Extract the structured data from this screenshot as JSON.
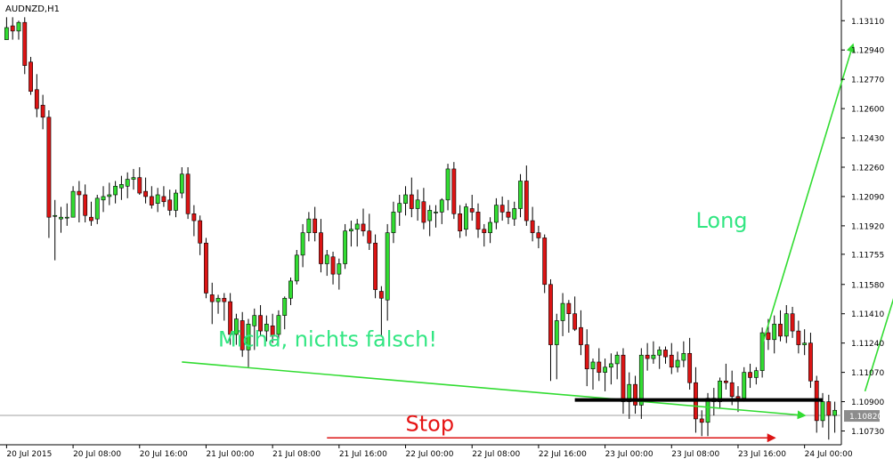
{
  "window": {
    "title": "AUDNZD,H1"
  },
  "price_marker": {
    "value": "1.10820"
  },
  "chart_data": {
    "type": "candlestick",
    "symbol": "AUDNZD",
    "timeframe": "H1",
    "ylim": [
      1.1065,
      1.1323
    ],
    "y_ticks": [
      "1.13110",
      "1.12940",
      "1.12770",
      "1.12600",
      "1.12430",
      "1.12260",
      "1.12090",
      "1.11920",
      "1.11755",
      "1.11580",
      "1.11410",
      "1.11240",
      "1.11070",
      "1.10900",
      "1.10730"
    ],
    "x_ticks": [
      {
        "i": 0,
        "label": "20 Jul 2015"
      },
      {
        "i": 11,
        "label": "20 Jul 08:00"
      },
      {
        "i": 22,
        "label": "20 Jul 16:00"
      },
      {
        "i": 33,
        "label": "21 Jul 00:00"
      },
      {
        "i": 44,
        "label": "21 Jul 08:00"
      },
      {
        "i": 55,
        "label": "21 Jul 16:00"
      },
      {
        "i": 66,
        "label": "22 Jul 00:00"
      },
      {
        "i": 77,
        "label": "22 Jul 08:00"
      },
      {
        "i": 88,
        "label": "22 Jul 16:00"
      },
      {
        "i": 99,
        "label": "23 Jul 00:00"
      },
      {
        "i": 110,
        "label": "23 Jul 08:00"
      },
      {
        "i": 121,
        "label": "23 Jul 16:00"
      },
      {
        "i": 132,
        "label": "24 Jul 00:00"
      }
    ],
    "colors": {
      "bull": "#32dc32",
      "bear": "#dc1414",
      "wick": "#000000",
      "grid": "#c8c8c8"
    },
    "candles": [
      [
        1.13,
        1.1313,
        1.13,
        1.1307
      ],
      [
        1.1308,
        1.1313,
        1.13,
        1.1305
      ],
      [
        1.1305,
        1.1311,
        1.13,
        1.131
      ],
      [
        1.131,
        1.1313,
        1.128,
        1.1285
      ],
      [
        1.1287,
        1.129,
        1.1268,
        1.127
      ],
      [
        1.1271,
        1.128,
        1.1255,
        1.126
      ],
      [
        1.1262,
        1.1268,
        1.1248,
        1.1255
      ],
      [
        1.1255,
        1.1259,
        1.1185,
        1.1197
      ],
      [
        1.1198,
        1.1207,
        1.1172,
        1.1198
      ],
      [
        1.1196,
        1.1203,
        1.1188,
        1.1197
      ],
      [
        1.1197,
        1.1205,
        1.1192,
        1.1197
      ],
      [
        1.1197,
        1.1215,
        1.1197,
        1.1212
      ],
      [
        1.1212,
        1.1218,
        1.1194,
        1.121
      ],
      [
        1.121,
        1.1216,
        1.1194,
        1.1198
      ],
      [
        1.1197,
        1.1206,
        1.1192,
        1.1195
      ],
      [
        1.1196,
        1.121,
        1.1193,
        1.1208
      ],
      [
        1.1207,
        1.1215,
        1.12,
        1.1209
      ],
      [
        1.1209,
        1.1217,
        1.1204,
        1.121
      ],
      [
        1.121,
        1.1218,
        1.1205,
        1.1215
      ],
      [
        1.1214,
        1.1221,
        1.1207,
        1.1216
      ],
      [
        1.1215,
        1.1223,
        1.1208,
        1.1219
      ],
      [
        1.1219,
        1.1225,
        1.1213,
        1.122
      ],
      [
        1.122,
        1.1226,
        1.121,
        1.1211
      ],
      [
        1.1212,
        1.122,
        1.1205,
        1.1209
      ],
      [
        1.1209,
        1.1215,
        1.1202,
        1.1204
      ],
      [
        1.1205,
        1.1214,
        1.12,
        1.121
      ],
      [
        1.1209,
        1.1215,
        1.1203,
        1.1206
      ],
      [
        1.1207,
        1.1213,
        1.1198,
        1.1201
      ],
      [
        1.1201,
        1.1213,
        1.1197,
        1.1211
      ],
      [
        1.1211,
        1.1226,
        1.1208,
        1.1222
      ],
      [
        1.1222,
        1.1226,
        1.1196,
        1.1199
      ],
      [
        1.1199,
        1.1204,
        1.1186,
        1.1195
      ],
      [
        1.1195,
        1.1198,
        1.1175,
        1.1182
      ],
      [
        1.1182,
        1.1185,
        1.115,
        1.1153
      ],
      [
        1.1152,
        1.1159,
        1.1135,
        1.1148
      ],
      [
        1.1148,
        1.1152,
        1.1141,
        1.115
      ],
      [
        1.115,
        1.1153,
        1.1137,
        1.1148
      ],
      [
        1.1148,
        1.1153,
        1.1123,
        1.1129
      ],
      [
        1.1129,
        1.1141,
        1.1123,
        1.1138
      ],
      [
        1.1137,
        1.1142,
        1.1116,
        1.112
      ],
      [
        1.112,
        1.1138,
        1.111,
        1.1135
      ],
      [
        1.1134,
        1.1144,
        1.112,
        1.114
      ],
      [
        1.114,
        1.1146,
        1.1128,
        1.1131
      ],
      [
        1.1131,
        1.114,
        1.1125,
        1.1135
      ],
      [
        1.1134,
        1.1141,
        1.1124,
        1.1128
      ],
      [
        1.1129,
        1.1143,
        1.1126,
        1.114
      ],
      [
        1.114,
        1.1151,
        1.1132,
        1.115
      ],
      [
        1.115,
        1.1162,
        1.1146,
        1.116
      ],
      [
        1.116,
        1.1178,
        1.1158,
        1.1175
      ],
      [
        1.1175,
        1.1193,
        1.1168,
        1.1188
      ],
      [
        1.1188,
        1.12,
        1.1183,
        1.1196
      ],
      [
        1.1196,
        1.1203,
        1.1183,
        1.1188
      ],
      [
        1.1188,
        1.1196,
        1.1165,
        1.117
      ],
      [
        1.117,
        1.1178,
        1.1163,
        1.1175
      ],
      [
        1.1174,
        1.1177,
        1.1158,
        1.1164
      ],
      [
        1.1164,
        1.1173,
        1.1155,
        1.117
      ],
      [
        1.117,
        1.1193,
        1.1167,
        1.1189
      ],
      [
        1.1189,
        1.1195,
        1.118,
        1.119
      ],
      [
        1.119,
        1.1196,
        1.118,
        1.1193
      ],
      [
        1.1193,
        1.1202,
        1.1186,
        1.1189
      ],
      [
        1.1189,
        1.1199,
        1.1178,
        1.1182
      ],
      [
        1.1182,
        1.1187,
        1.115,
        1.1155
      ],
      [
        1.1154,
        1.1157,
        1.1128,
        1.115
      ],
      [
        1.1149,
        1.1193,
        1.1137,
        1.1188
      ],
      [
        1.1188,
        1.1206,
        1.1182,
        1.12
      ],
      [
        1.12,
        1.121,
        1.1192,
        1.1205
      ],
      [
        1.1205,
        1.1215,
        1.1198,
        1.121
      ],
      [
        1.121,
        1.122,
        1.1197,
        1.1202
      ],
      [
        1.1202,
        1.1213,
        1.1195,
        1.1207
      ],
      [
        1.1206,
        1.1214,
        1.119,
        1.1194
      ],
      [
        1.1195,
        1.1204,
        1.1186,
        1.1201
      ],
      [
        1.12,
        1.1204,
        1.1191,
        1.12
      ],
      [
        1.12,
        1.1208,
        1.1193,
        1.1207
      ],
      [
        1.1207,
        1.1228,
        1.1201,
        1.1225
      ],
      [
        1.1225,
        1.1229,
        1.1196,
        1.1199
      ],
      [
        1.1199,
        1.1204,
        1.1185,
        1.1189
      ],
      [
        1.119,
        1.1205,
        1.1186,
        1.1203
      ],
      [
        1.1202,
        1.121,
        1.1195,
        1.12
      ],
      [
        1.12,
        1.1205,
        1.1185,
        1.119
      ],
      [
        1.119,
        1.1193,
        1.118,
        1.1188
      ],
      [
        1.1188,
        1.1197,
        1.1182,
        1.1194
      ],
      [
        1.1194,
        1.1208,
        1.119,
        1.1204
      ],
      [
        1.1204,
        1.1209,
        1.1195,
        1.12
      ],
      [
        1.12,
        1.1207,
        1.1193,
        1.1197
      ],
      [
        1.1196,
        1.1206,
        1.1192,
        1.1202
      ],
      [
        1.1202,
        1.1222,
        1.1197,
        1.1218
      ],
      [
        1.1218,
        1.1227,
        1.1192,
        1.1195
      ],
      [
        1.1195,
        1.1203,
        1.1183,
        1.1188
      ],
      [
        1.1188,
        1.1192,
        1.1179,
        1.1185
      ],
      [
        1.1185,
        1.1187,
        1.1153,
        1.1158
      ],
      [
        1.1158,
        1.1161,
        1.1102,
        1.1123
      ],
      [
        1.1123,
        1.1141,
        1.1103,
        1.1137
      ],
      [
        1.1137,
        1.1153,
        1.1128,
        1.1147
      ],
      [
        1.1147,
        1.1149,
        1.113,
        1.1141
      ],
      [
        1.1141,
        1.1151,
        1.1131,
        1.1132
      ],
      [
        1.1133,
        1.1143,
        1.1117,
        1.1123
      ],
      [
        1.1123,
        1.1132,
        1.1099,
        1.1109
      ],
      [
        1.1109,
        1.1115,
        1.1097,
        1.1113
      ],
      [
        1.1113,
        1.1121,
        1.1102,
        1.1107
      ],
      [
        1.1107,
        1.1115,
        1.1096,
        1.111
      ],
      [
        1.111,
        1.1118,
        1.11,
        1.1112
      ],
      [
        1.1112,
        1.1119,
        1.1103,
        1.1117
      ],
      [
        1.1117,
        1.1121,
        1.1083,
        1.109
      ],
      [
        1.109,
        1.1107,
        1.108,
        1.11
      ],
      [
        1.11,
        1.1105,
        1.1083,
        1.1088
      ],
      [
        1.1088,
        1.1121,
        1.108,
        1.1117
      ],
      [
        1.1117,
        1.1124,
        1.1108,
        1.1115
      ],
      [
        1.1115,
        1.1125,
        1.1112,
        1.1117
      ],
      [
        1.1117,
        1.1122,
        1.1109,
        1.112
      ],
      [
        1.112,
        1.1122,
        1.1112,
        1.1116
      ],
      [
        1.1117,
        1.1124,
        1.1106,
        1.111
      ],
      [
        1.111,
        1.1119,
        1.1107,
        1.1114
      ],
      [
        1.1114,
        1.1125,
        1.111,
        1.1118
      ],
      [
        1.1118,
        1.1127,
        1.1097,
        1.1101
      ],
      [
        1.1101,
        1.111,
        1.1072,
        1.108
      ],
      [
        1.108,
        1.1085,
        1.107,
        1.1078
      ],
      [
        1.1078,
        1.1095,
        1.107,
        1.1092
      ],
      [
        1.1092,
        1.1098,
        1.1082,
        1.109
      ],
      [
        1.109,
        1.1104,
        1.1086,
        1.1102
      ],
      [
        1.1102,
        1.1112,
        1.1097,
        1.1101
      ],
      [
        1.1101,
        1.1108,
        1.1088,
        1.1093
      ],
      [
        1.1093,
        1.1099,
        1.1084,
        1.1092
      ],
      [
        1.1092,
        1.111,
        1.109,
        1.1107
      ],
      [
        1.1107,
        1.1112,
        1.1098,
        1.1104
      ],
      [
        1.1104,
        1.111,
        1.11,
        1.1108
      ],
      [
        1.1108,
        1.1133,
        1.1104,
        1.113
      ],
      [
        1.113,
        1.1138,
        1.112,
        1.1126
      ],
      [
        1.1126,
        1.114,
        1.1118,
        1.1135
      ],
      [
        1.1135,
        1.1143,
        1.1125,
        1.1128
      ],
      [
        1.1128,
        1.1146,
        1.1124,
        1.1141
      ],
      [
        1.1141,
        1.1145,
        1.1127,
        1.1131
      ],
      [
        1.1131,
        1.1137,
        1.1118,
        1.1123
      ],
      [
        1.1123,
        1.1132,
        1.1117,
        1.1124
      ],
      [
        1.1124,
        1.113,
        1.1098,
        1.1102
      ],
      [
        1.1102,
        1.1105,
        1.1072,
        1.1079
      ],
      [
        1.1079,
        1.1095,
        1.1075,
        1.109
      ],
      [
        1.109,
        1.1094,
        1.1068,
        1.1082
      ],
      [
        1.1082,
        1.109,
        1.1072,
        1.1085
      ]
    ],
    "annotations": [
      {
        "kind": "text",
        "text": "Long",
        "price": 1.1191,
        "i": 114,
        "color": "#32e682"
      },
      {
        "kind": "text",
        "text": "Micha, nichts falsch!",
        "price": 1.1122,
        "i": 35,
        "color": "#32e682"
      },
      {
        "kind": "text",
        "text": "Stop",
        "price": 1.1073,
        "i": 66,
        "color": "#e61414"
      },
      {
        "kind": "arrow",
        "from": {
          "i": 125,
          "price": 1.1123
        },
        "to": {
          "i": 140,
          "price": 1.1297
        },
        "color": "#32dc32"
      },
      {
        "kind": "arrow",
        "from": {
          "i": 142,
          "price": 1.1096
        },
        "to": {
          "i": 158,
          "price": 1.1278
        },
        "color": "#32dc32"
      },
      {
        "kind": "arrow",
        "from": {
          "i": 29,
          "price": 1.1113
        },
        "to": {
          "i": 132,
          "price": 1.1082
        },
        "color": "#32dc32"
      },
      {
        "kind": "arrow",
        "from": {
          "i": 53,
          "price": 1.1069
        },
        "to": {
          "i": 127,
          "price": 1.1069
        },
        "color": "#dc1414"
      },
      {
        "kind": "line",
        "from": {
          "i": 94,
          "price": 1.1091
        },
        "to": {
          "i": 135,
          "price": 1.1091
        },
        "color": "#000000"
      }
    ]
  }
}
